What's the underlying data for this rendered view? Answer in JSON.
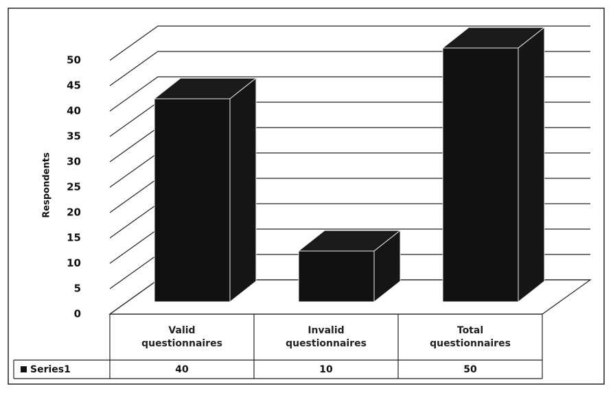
{
  "chart_data": {
    "type": "bar3d",
    "y_label": "Respondents",
    "categories": [
      "Valid questionnaires",
      "Invalid questionnaires",
      "Total questionnaires"
    ],
    "series": [
      {
        "name": "Series1",
        "color": "#111111",
        "values": [
          40,
          10,
          50
        ]
      }
    ],
    "ylim": [
      0,
      50
    ],
    "yticks": [
      0,
      5,
      10,
      15,
      20,
      25,
      30,
      35,
      40,
      45,
      50
    ],
    "grid": true,
    "data_table": true
  }
}
